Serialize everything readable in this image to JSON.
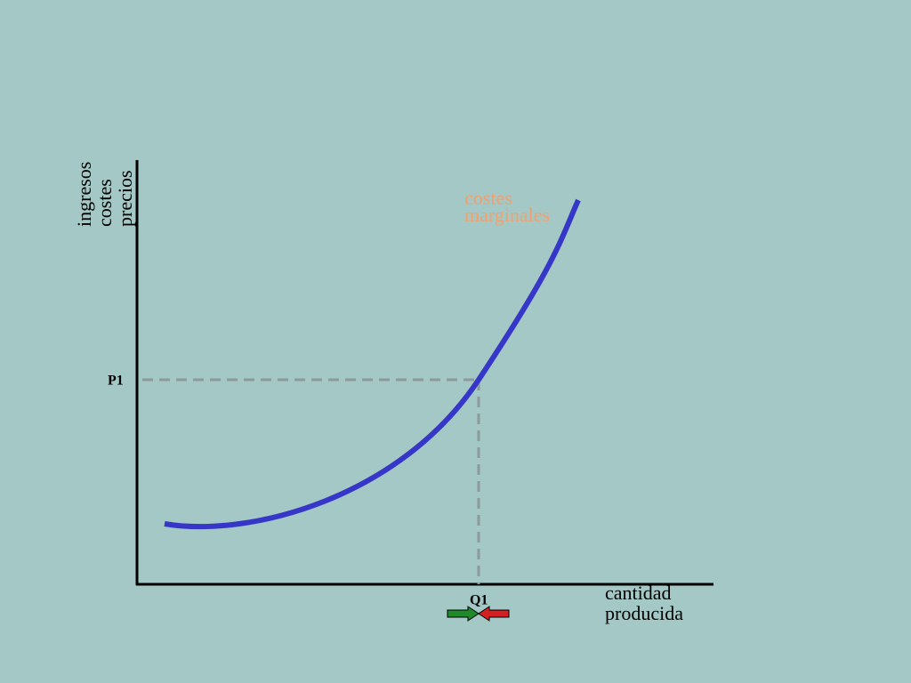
{
  "y_axis": {
    "label_lines": [
      "ingresos",
      "costes",
      "precios"
    ]
  },
  "curve": {
    "label_lines": [
      "costes",
      "marginales"
    ]
  },
  "markers": {
    "price": "P1",
    "quantity": "Q1"
  },
  "x_axis": {
    "label_lines": [
      "cantidad",
      "producida"
    ]
  }
}
